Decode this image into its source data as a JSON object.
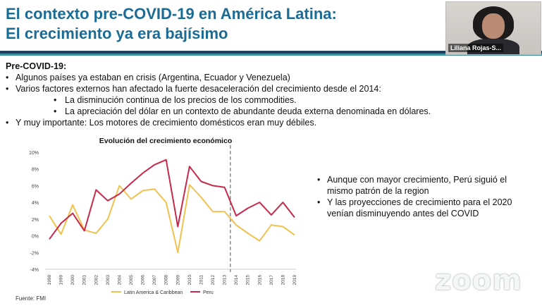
{
  "slide": {
    "title_line1": "El contexto pre-COVID-19 en América Latina:",
    "title_line2": "El crecimiento ya era bajísimo",
    "section_head": "Pre-COVID-19:",
    "bullets": [
      "Algunos países ya estaban en crisis (Argentina, Ecuador y Venezuela)",
      "Varios factores externos han afectado la fuerte desaceleración del crecimiento desde el 2014:",
      "Y muy importante: Los motores de crecimiento domésticos eran muy débiles."
    ],
    "sub_bullets": [
      "La disminución continua de los precios de los commodities.",
      "La apreciación del dólar en un contexto de abundante deuda externa denominada en dólares."
    ],
    "right_bullets": [
      "Aunque con mayor crecimiento, Perú siguió el mismo patrón de la region",
      "Y las proyecciones de crecimiento para el 2020 venían disminuyendo antes del COVID"
    ]
  },
  "video": {
    "participant_name": "Liliana Rojas-S..."
  },
  "watermark": "zoom",
  "chart_data": {
    "type": "line",
    "title": "Evolución del crecimiento económico",
    "source": "Fuente: FMI",
    "x": [
      "1998",
      "1999",
      "2000",
      "2001",
      "2002",
      "2003",
      "2004",
      "2005",
      "2006",
      "2007",
      "2008",
      "2009",
      "2010",
      "2011",
      "2012",
      "2013",
      "2014",
      "2015",
      "2016",
      "2017",
      "2018",
      "2019"
    ],
    "series": [
      {
        "name": "Latin America & Caribbean",
        "color": "#f2c14e",
        "values": [
          2.4,
          0.2,
          3.7,
          0.7,
          0.3,
          2.0,
          6.0,
          4.4,
          5.4,
          5.6,
          4.0,
          -2.0,
          6.1,
          4.6,
          2.9,
          2.9,
          1.3,
          0.3,
          -0.6,
          1.3,
          1.1,
          0.1
        ]
      },
      {
        "name": "Peru",
        "color": "#c8284a",
        "values": [
          -0.4,
          1.5,
          2.7,
          0.6,
          5.5,
          4.2,
          5.0,
          6.3,
          7.5,
          8.5,
          9.1,
          1.1,
          8.3,
          6.5,
          6.0,
          5.8,
          2.4,
          3.3,
          4.0,
          2.5,
          4.0,
          2.2
        ]
      }
    ],
    "y_ticks": [
      "10%",
      "8%",
      "6%",
      "4%",
      "2%",
      "0%",
      "-2%",
      "-4%"
    ],
    "ylim": [
      -4,
      10
    ],
    "vertical_marker_after": "2013",
    "legend_position": "bottom",
    "grid": false
  }
}
